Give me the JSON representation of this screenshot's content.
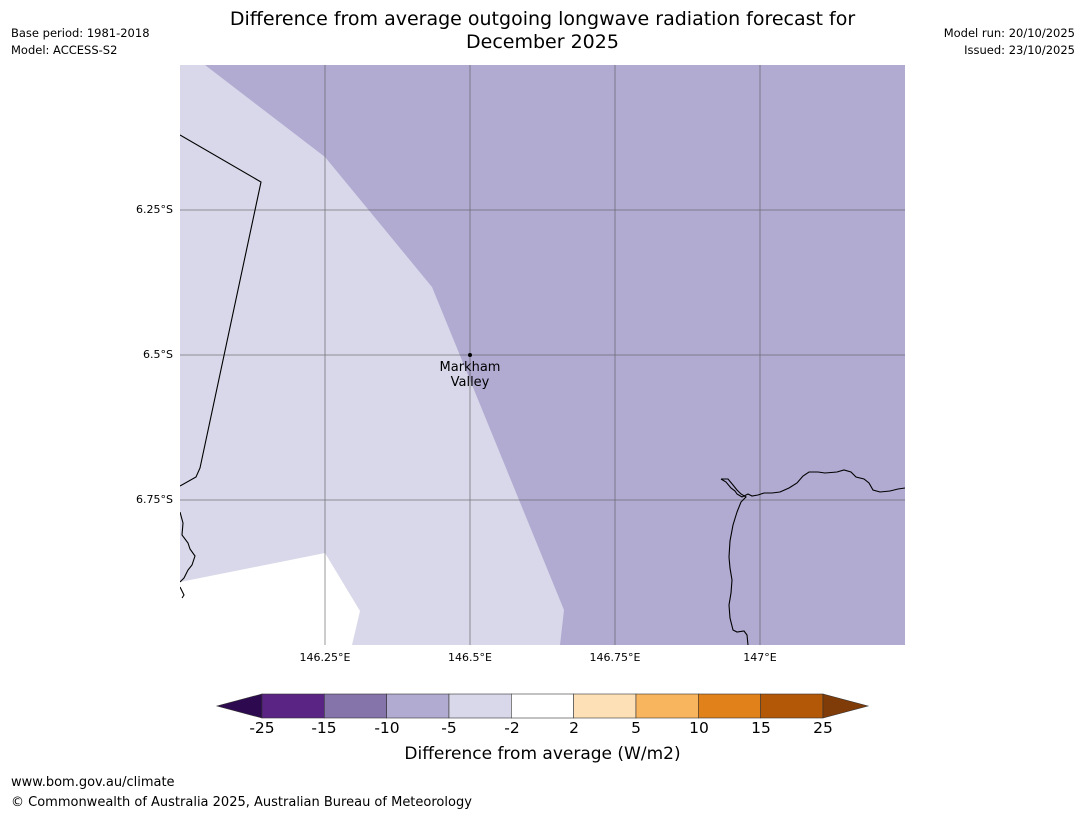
{
  "title": "Difference from average outgoing longwave radiation forecast for\nDecember 2025",
  "meta_left": {
    "base_period": "Base period: 1981-2018",
    "model": "Model: ACCESS-S2"
  },
  "meta_right": {
    "model_run": "Model run: 20/10/2025",
    "issued": "Issued: 23/10/2025"
  },
  "map": {
    "latitude_labels": [
      "6.25°S",
      "6.5°S",
      "6.75°S"
    ],
    "longitude_labels": [
      "146.25°E",
      "146.5°E",
      "146.75°E",
      "147°E"
    ],
    "location_label": "Markham\nValley",
    "fill_colors": {
      "dark_band": "#b1abd2",
      "light_band": "#d8d8ea",
      "no_data": "#ffffff"
    },
    "gridline_color": "#555555",
    "coastline_color": "#000000"
  },
  "colorbar": {
    "label": "Difference from average (W/m2)",
    "ticks": [
      "-25",
      "-15",
      "-10",
      "-5",
      "-2",
      "2",
      "5",
      "10",
      "15",
      "25"
    ],
    "colors": [
      "#2d0a4f",
      "#5a2484",
      "#8474aa",
      "#b1abd2",
      "#d8d8ea",
      "#ffffff",
      "#fde0b5",
      "#f9b45e",
      "#e0811a",
      "#b35806",
      "#7f3b08"
    ]
  },
  "footer": {
    "url": "www.bom.gov.au/climate",
    "copyright": "© Commonwealth of Australia 2025, Australian Bureau of Meteorology"
  }
}
